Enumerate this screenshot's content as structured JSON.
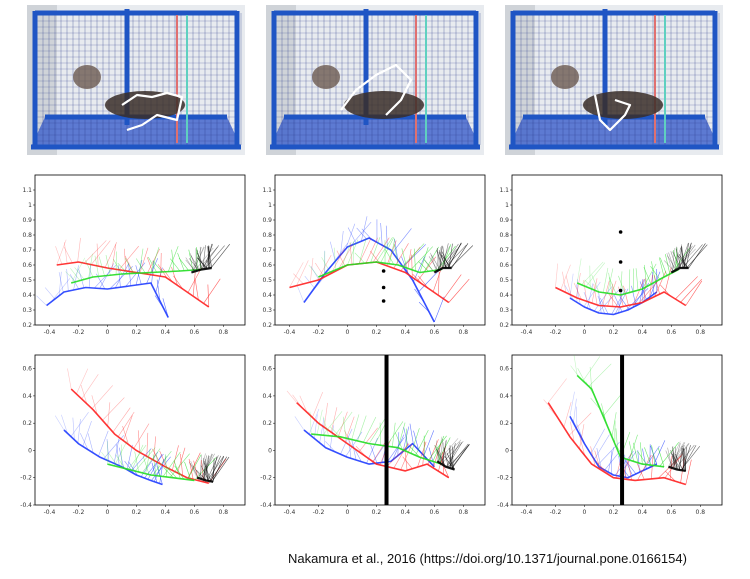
{
  "citation": "Nakamura et al., 2016 (https://doi.org/10.1371/journal.pone.0166154)",
  "colors": {
    "blue": "#1f3cff",
    "red": "#ff2020",
    "green": "#22dd22",
    "black": "#000000",
    "cage_frame": "#1f55c4",
    "cage_floor": "#4466cc",
    "pose_line": "#ffffff"
  },
  "photos": [
    {
      "name": "photo-walking",
      "pose_icon": "stick-figure-icon"
    },
    {
      "name": "photo-leaping",
      "pose_icon": "stick-figure-icon"
    },
    {
      "name": "photo-crouching",
      "pose_icon": "stick-figure-icon"
    }
  ],
  "chart_data": [
    {
      "type": "line",
      "title": "",
      "xlabel": "",
      "ylabel": "",
      "xlim": [
        -0.5,
        0.95
      ],
      "ylim": [
        0.2,
        1.2
      ],
      "xticks": [
        "-0.4",
        "-0.2",
        "0",
        "0.2",
        "0.4",
        "0.6",
        "0.8"
      ],
      "yticks": [
        "0.2",
        "0.3",
        "0.4",
        "0.5",
        "0.6",
        "0.7",
        "0.8",
        "0.9",
        "1",
        "1.1"
      ],
      "grid": false,
      "obstacle": {
        "kind": "none"
      },
      "series": [
        {
          "color": "blue",
          "x": [
            -0.42,
            -0.3,
            -0.15,
            0.0,
            0.15,
            0.3,
            0.42
          ],
          "y": [
            0.33,
            0.42,
            0.45,
            0.44,
            0.46,
            0.48,
            0.25
          ]
        },
        {
          "color": "red",
          "x": [
            -0.35,
            -0.2,
            0.0,
            0.2,
            0.4,
            0.55,
            0.7
          ],
          "y": [
            0.6,
            0.62,
            0.58,
            0.55,
            0.52,
            0.42,
            0.32
          ]
        },
        {
          "color": "green",
          "x": [
            -0.25,
            -0.1,
            0.1,
            0.3,
            0.5,
            0.65
          ],
          "y": [
            0.48,
            0.52,
            0.54,
            0.55,
            0.56,
            0.57
          ]
        },
        {
          "color": "black",
          "x": [
            0.58,
            0.65,
            0.72
          ],
          "y": [
            0.55,
            0.57,
            0.58
          ]
        }
      ]
    },
    {
      "type": "line",
      "title": "",
      "xlabel": "",
      "ylabel": "",
      "xlim": [
        -0.5,
        0.95
      ],
      "ylim": [
        0.2,
        1.2
      ],
      "xticks": [
        "-0.4",
        "-0.2",
        "0",
        "0.2",
        "0.4",
        "0.6",
        "0.8"
      ],
      "yticks": [
        "0.2",
        "0.3",
        "0.4",
        "0.5",
        "0.6",
        "0.7",
        "0.8",
        "0.9",
        "1",
        "1.1"
      ],
      "grid": false,
      "obstacle": {
        "kind": "dots",
        "x": [
          0.25,
          0.25,
          0.25
        ],
        "y": [
          0.56,
          0.45,
          0.36
        ]
      },
      "series": [
        {
          "color": "blue",
          "x": [
            -0.3,
            -0.15,
            0.0,
            0.15,
            0.3,
            0.45,
            0.6
          ],
          "y": [
            0.35,
            0.55,
            0.72,
            0.78,
            0.7,
            0.5,
            0.22
          ]
        },
        {
          "color": "red",
          "x": [
            -0.4,
            -0.2,
            0.0,
            0.2,
            0.4,
            0.55,
            0.7
          ],
          "y": [
            0.45,
            0.5,
            0.6,
            0.62,
            0.55,
            0.45,
            0.35
          ]
        },
        {
          "color": "green",
          "x": [
            -0.2,
            0.0,
            0.2,
            0.35,
            0.5,
            0.65
          ],
          "y": [
            0.52,
            0.6,
            0.62,
            0.6,
            0.55,
            0.57
          ]
        },
        {
          "color": "black",
          "x": [
            0.6,
            0.66,
            0.72
          ],
          "y": [
            0.55,
            0.58,
            0.58
          ]
        }
      ]
    },
    {
      "type": "line",
      "title": "",
      "xlabel": "",
      "ylabel": "",
      "xlim": [
        -0.5,
        0.95
      ],
      "ylim": [
        0.2,
        1.2
      ],
      "xticks": [
        "-0.4",
        "-0.2",
        "0",
        "0.2",
        "0.4",
        "0.6",
        "0.8"
      ],
      "yticks": [
        "0.2",
        "0.3",
        "0.4",
        "0.5",
        "0.6",
        "0.7",
        "0.8",
        "0.9",
        "1",
        "1.1"
      ],
      "grid": false,
      "obstacle": {
        "kind": "dots",
        "x": [
          0.25,
          0.25,
          0.25
        ],
        "y": [
          0.82,
          0.62,
          0.43
        ]
      },
      "series": [
        {
          "color": "blue",
          "x": [
            -0.1,
            0.0,
            0.1,
            0.2,
            0.3,
            0.4,
            0.5
          ],
          "y": [
            0.38,
            0.32,
            0.28,
            0.27,
            0.3,
            0.35,
            0.42
          ]
        },
        {
          "color": "red",
          "x": [
            -0.2,
            -0.05,
            0.1,
            0.25,
            0.4,
            0.55,
            0.7
          ],
          "y": [
            0.45,
            0.38,
            0.33,
            0.32,
            0.35,
            0.42,
            0.33
          ]
        },
        {
          "color": "green",
          "x": [
            -0.05,
            0.1,
            0.25,
            0.4,
            0.55,
            0.65
          ],
          "y": [
            0.48,
            0.42,
            0.4,
            0.44,
            0.52,
            0.57
          ]
        },
        {
          "color": "black",
          "x": [
            0.6,
            0.66,
            0.72
          ],
          "y": [
            0.55,
            0.58,
            0.58
          ]
        }
      ]
    },
    {
      "type": "line",
      "title": "",
      "xlabel": "",
      "ylabel": "",
      "xlim": [
        -0.5,
        0.95
      ],
      "ylim": [
        -0.4,
        0.7
      ],
      "xticks": [
        "-0.4",
        "-0.2",
        "0",
        "0.2",
        "0.4",
        "0.6",
        "0.8"
      ],
      "yticks": [
        "-0.4",
        "-0.2",
        "0",
        "0.2",
        "0.4",
        "0.6"
      ],
      "grid": false,
      "obstacle": {
        "kind": "none"
      },
      "series": [
        {
          "color": "blue",
          "x": [
            -0.3,
            -0.2,
            -0.05,
            0.1,
            0.2,
            0.3,
            0.38
          ],
          "y": [
            0.15,
            0.05,
            -0.05,
            -0.12,
            -0.18,
            -0.22,
            -0.25
          ]
        },
        {
          "color": "red",
          "x": [
            -0.25,
            -0.1,
            0.05,
            0.2,
            0.4,
            0.55,
            0.7
          ],
          "y": [
            0.45,
            0.3,
            0.12,
            0.0,
            -0.12,
            -0.2,
            -0.24
          ]
        },
        {
          "color": "green",
          "x": [
            0.0,
            0.15,
            0.3,
            0.45,
            0.6
          ],
          "y": [
            -0.1,
            -0.14,
            -0.18,
            -0.2,
            -0.22
          ]
        },
        {
          "color": "black",
          "x": [
            0.62,
            0.68,
            0.73
          ],
          "y": [
            -0.2,
            -0.22,
            -0.23
          ]
        }
      ]
    },
    {
      "type": "line",
      "title": "",
      "xlabel": "",
      "ylabel": "",
      "xlim": [
        -0.5,
        0.95
      ],
      "ylim": [
        -0.4,
        0.7
      ],
      "xticks": [
        "-0.4",
        "-0.2",
        "0",
        "0.2",
        "0.4",
        "0.6",
        "0.8"
      ],
      "yticks": [
        "-0.4",
        "-0.2",
        "0",
        "0.2",
        "0.4",
        "0.6"
      ],
      "grid": false,
      "obstacle": {
        "kind": "bar",
        "x": 0.27
      },
      "series": [
        {
          "color": "blue",
          "x": [
            -0.3,
            -0.15,
            0.0,
            0.15,
            0.3,
            0.45,
            0.6
          ],
          "y": [
            0.15,
            0.02,
            -0.05,
            -0.1,
            -0.08,
            0.05,
            -0.12
          ]
        },
        {
          "color": "red",
          "x": [
            -0.35,
            -0.2,
            0.0,
            0.2,
            0.4,
            0.55,
            0.7
          ],
          "y": [
            0.35,
            0.2,
            0.05,
            -0.1,
            -0.15,
            -0.1,
            -0.2
          ]
        },
        {
          "color": "green",
          "x": [
            -0.25,
            -0.05,
            0.15,
            0.35,
            0.5,
            0.65
          ],
          "y": [
            0.12,
            0.1,
            0.05,
            0.02,
            -0.05,
            -0.1
          ]
        },
        {
          "color": "black",
          "x": [
            0.62,
            0.68,
            0.74
          ],
          "y": [
            -0.08,
            -0.12,
            -0.14
          ]
        }
      ]
    },
    {
      "type": "line",
      "title": "",
      "xlabel": "",
      "ylabel": "",
      "xlim": [
        -0.5,
        0.95
      ],
      "ylim": [
        -0.4,
        0.7
      ],
      "xticks": [
        "-0.4",
        "-0.2",
        "0",
        "0.2",
        "0.4",
        "0.6",
        "0.8"
      ],
      "yticks": [
        "-0.4",
        "-0.2",
        "0",
        "0.2",
        "0.4",
        "0.6"
      ],
      "grid": false,
      "obstacle": {
        "kind": "bar",
        "x": 0.26
      },
      "series": [
        {
          "color": "blue",
          "x": [
            -0.1,
            0.0,
            0.1,
            0.2,
            0.3,
            0.4,
            0.5
          ],
          "y": [
            0.25,
            0.05,
            -0.12,
            -0.18,
            -0.2,
            -0.15,
            -0.1
          ]
        },
        {
          "color": "red",
          "x": [
            -0.25,
            -0.1,
            0.05,
            0.2,
            0.35,
            0.55,
            0.7
          ],
          "y": [
            0.35,
            0.1,
            -0.1,
            -0.2,
            -0.22,
            -0.2,
            -0.25
          ]
        },
        {
          "color": "green",
          "x": [
            -0.05,
            0.05,
            0.15,
            0.25,
            0.4,
            0.55
          ],
          "y": [
            0.55,
            0.45,
            0.2,
            -0.05,
            -0.1,
            -0.12
          ]
        },
        {
          "color": "black",
          "x": [
            0.58,
            0.64,
            0.7
          ],
          "y": [
            -0.12,
            -0.14,
            -0.15
          ]
        }
      ]
    }
  ]
}
